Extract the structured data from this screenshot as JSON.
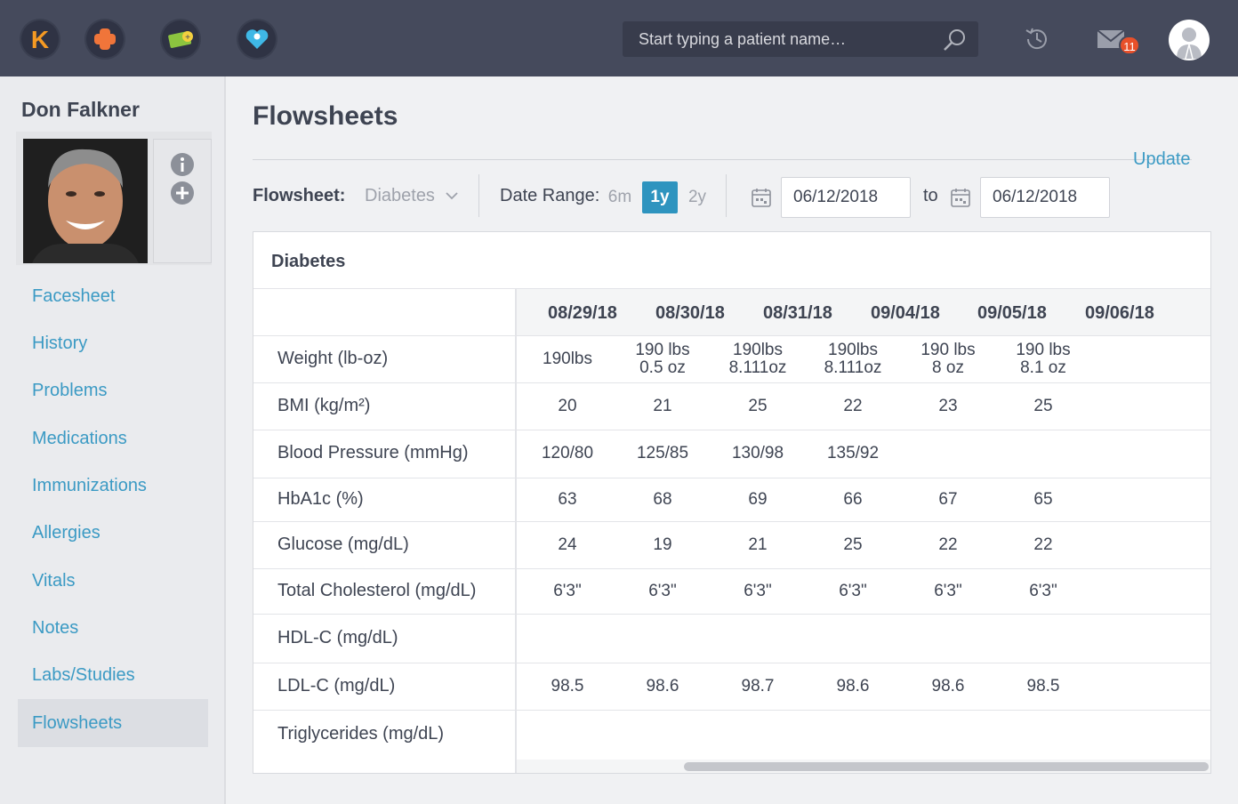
{
  "topbar": {
    "apps": [
      {
        "name": "kareo-logo-icon",
        "color": "#f59a23"
      },
      {
        "name": "medical-cross-icon",
        "color": "#f0753a"
      },
      {
        "name": "billing-money-icon",
        "color": "#8cc43f"
      },
      {
        "name": "patient-heart-icon",
        "color": "#3fb8e6"
      }
    ],
    "search_placeholder": "Start typing a patient name…",
    "mail_count": "11"
  },
  "sidebar": {
    "patient_name": "Don Falkner",
    "nav": [
      "Facesheet",
      "History",
      "Problems",
      "Medications",
      "Immunizations",
      "Allergies",
      "Vitals",
      "Notes",
      "Labs/Studies",
      "Flowsheets"
    ],
    "active": "Flowsheets"
  },
  "main": {
    "title": "Flowsheets",
    "update_label": "Update",
    "flowsheet_label": "Flowsheet:",
    "flowsheet_value": "Diabetes",
    "date_range_label": "Date Range:",
    "ranges": [
      "6m",
      "1y",
      "2y"
    ],
    "active_range": "1y",
    "from_date": "06/12/2018",
    "to_label": "to",
    "to_date": "06/12/2018"
  },
  "table": {
    "title": "Diabetes",
    "dates": [
      "08/29/18",
      "08/30/18",
      "08/31/18",
      "09/04/18",
      "09/05/18",
      "09/06/18"
    ],
    "rows": [
      {
        "label": "Weight (lb-oz)",
        "values": [
          [
            "190lbs"
          ],
          [
            "190 lbs",
            "0.5 oz"
          ],
          [
            "190lbs",
            "8.111oz"
          ],
          [
            "190lbs",
            "8.111oz"
          ],
          [
            "190 lbs",
            "8 oz"
          ],
          [
            "190 lbs",
            "8.1 oz"
          ]
        ]
      },
      {
        "label": "BMI (kg/m²)",
        "values": [
          [
            "20"
          ],
          [
            "21"
          ],
          [
            "25"
          ],
          [
            "22"
          ],
          [
            "23"
          ],
          [
            "25"
          ]
        ]
      },
      {
        "label": "Blood Pressure (mmHg)",
        "values": [
          [
            "120/80"
          ],
          [
            "125/85"
          ],
          [
            "130/98"
          ],
          [
            "135/92"
          ],
          [],
          []
        ]
      },
      {
        "label": "HbA1c (%)",
        "values": [
          [
            "63"
          ],
          [
            "68"
          ],
          [
            "69"
          ],
          [
            "66"
          ],
          [
            "67"
          ],
          [
            "65"
          ]
        ]
      },
      {
        "label": "Glucose (mg/dL)",
        "values": [
          [
            "24"
          ],
          [
            "19"
          ],
          [
            "21"
          ],
          [
            "25"
          ],
          [
            "22"
          ],
          [
            "22"
          ]
        ]
      },
      {
        "label": "Total Cholesterol (mg/dL)",
        "values": [
          [
            "6'3\""
          ],
          [
            "6'3\""
          ],
          [
            "6'3\""
          ],
          [
            "6'3\""
          ],
          [
            "6'3\""
          ],
          [
            "6'3\""
          ]
        ]
      },
      {
        "label": "HDL-C (mg/dL)",
        "values": [
          [],
          [],
          [],
          [],
          [],
          []
        ]
      },
      {
        "label": "LDL-C (mg/dL)",
        "values": [
          [
            "98.5"
          ],
          [
            "98.6"
          ],
          [
            "98.7"
          ],
          [
            "98.6"
          ],
          [
            "98.6"
          ],
          [
            "98.5"
          ]
        ]
      },
      {
        "label": "Triglycerides (mg/dL)",
        "values": [
          [],
          [],
          [],
          [],
          [],
          []
        ]
      }
    ]
  }
}
